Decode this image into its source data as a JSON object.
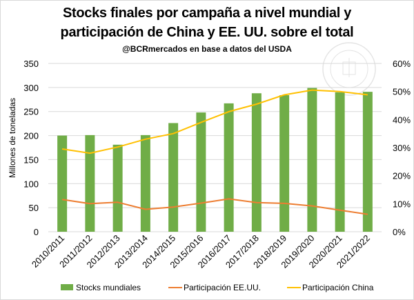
{
  "title_line1": "Stocks finales por campaña a nivel mundial y",
  "title_line2": "participación de China y EE. UU. sobre el total",
  "subtitle": "@BCRmercados  en base a datos del USDA",
  "chart_data": {
    "type": "bar",
    "categories": [
      "2010/2011",
      "2011/2012",
      "2012/2013",
      "2013/2014",
      "2014/2015",
      "2015/2016",
      "2016/2017",
      "2017/2018",
      "2018/2019",
      "2019/2020",
      "2020/2021",
      "2021/2022"
    ],
    "series": [
      {
        "name": "Stocks mundiales",
        "type": "bar",
        "axis": "left",
        "color": "#70ad47",
        "values": [
          200,
          201,
          181,
          201,
          226,
          248,
          267,
          288,
          284,
          299,
          290,
          291
        ]
      },
      {
        "name": "Participación EE.UU.",
        "type": "line",
        "axis": "right",
        "color": "#ed7d31",
        "values": [
          0.115,
          0.1,
          0.105,
          0.08,
          0.088,
          0.102,
          0.117,
          0.104,
          0.101,
          0.092,
          0.077,
          0.062
        ]
      },
      {
        "name": "Participación China",
        "type": "line",
        "axis": "right",
        "color": "#ffc000",
        "values": [
          0.295,
          0.28,
          0.302,
          0.33,
          0.35,
          0.39,
          0.428,
          0.455,
          0.488,
          0.505,
          0.5,
          0.488
        ]
      }
    ],
    "ylabel": "Millones de toneladas",
    "ylim": [
      0,
      350
    ],
    "yticks": [
      0,
      50,
      100,
      150,
      200,
      250,
      300,
      350
    ],
    "y2lim": [
      0,
      0.6
    ],
    "y2ticks": [
      "0%",
      "10%",
      "20%",
      "30%",
      "40%",
      "50%",
      "60%"
    ],
    "grid": true,
    "legend_position": "bottom"
  }
}
